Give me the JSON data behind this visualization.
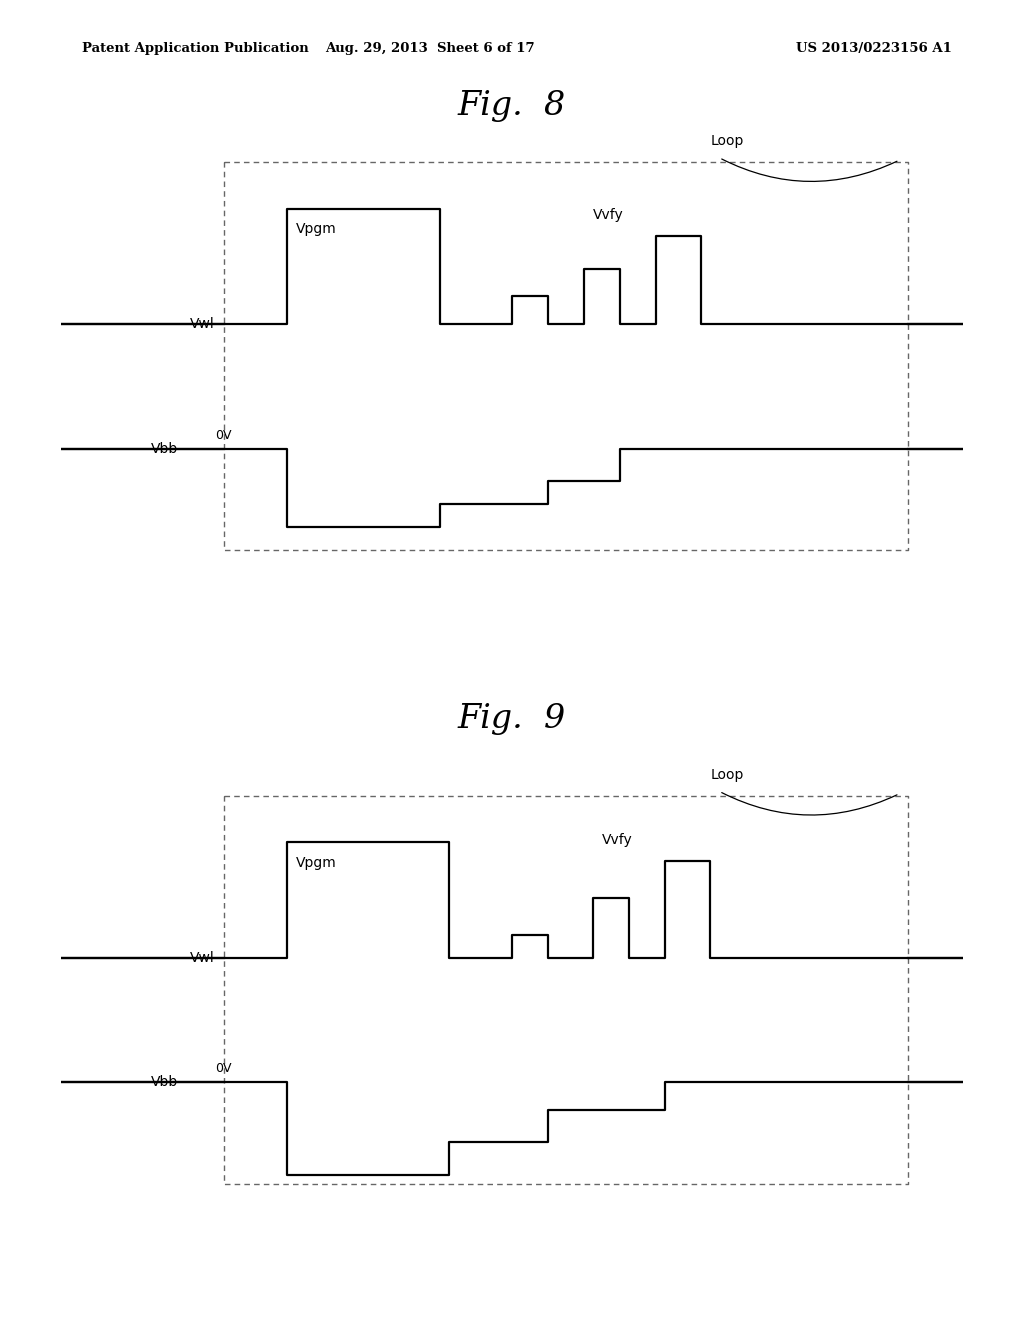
{
  "header_left": "Patent Application Publication",
  "header_center": "Aug. 29, 2013  Sheet 6 of 17",
  "header_right": "US 2013/0223156 A1",
  "fig8_title": "Fig.  8",
  "fig9_title": "Fig.  9",
  "loop_label": "Loop",
  "vpgm_label": "Vpgm",
  "vvfy_label": "Vvfy",
  "vwl_label": "Vwl",
  "vbb_label": "Vbb",
  "ov_label": "0V",
  "bg_color": "#ffffff",
  "line_color": "#000000",
  "dash_color": "#666666"
}
